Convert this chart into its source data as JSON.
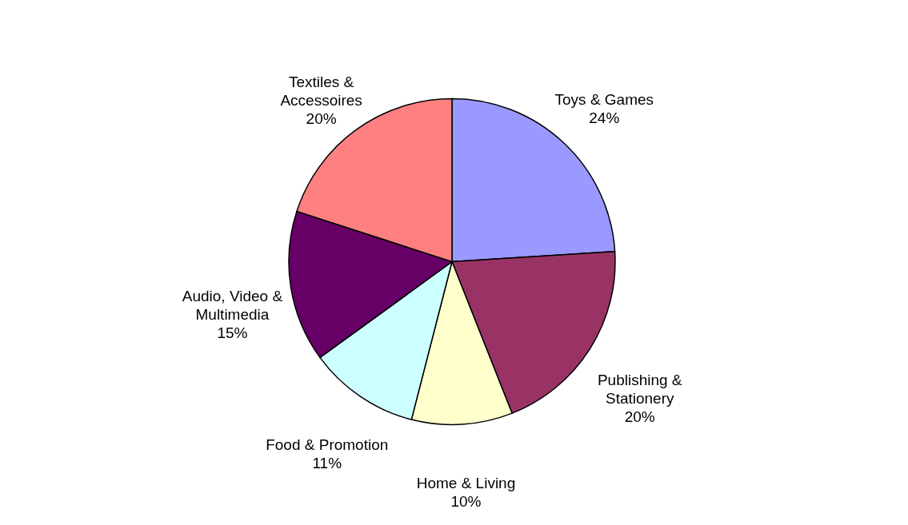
{
  "chart_data": {
    "type": "pie",
    "categories": [
      "Toys & Games",
      "Publishing & Stationery",
      "Home & Living",
      "Food & Promotion",
      "Audio, Video & Multimedia",
      "Textiles & Accessoires"
    ],
    "values": [
      24,
      20,
      10,
      11,
      15,
      20
    ],
    "colors": [
      "#9999ff",
      "#993366",
      "#ffffcc",
      "#ccffff",
      "#660066",
      "#ff8080"
    ],
    "value_labels": [
      "24%",
      "20%",
      "10%",
      "11%",
      "15%",
      "20%"
    ]
  }
}
